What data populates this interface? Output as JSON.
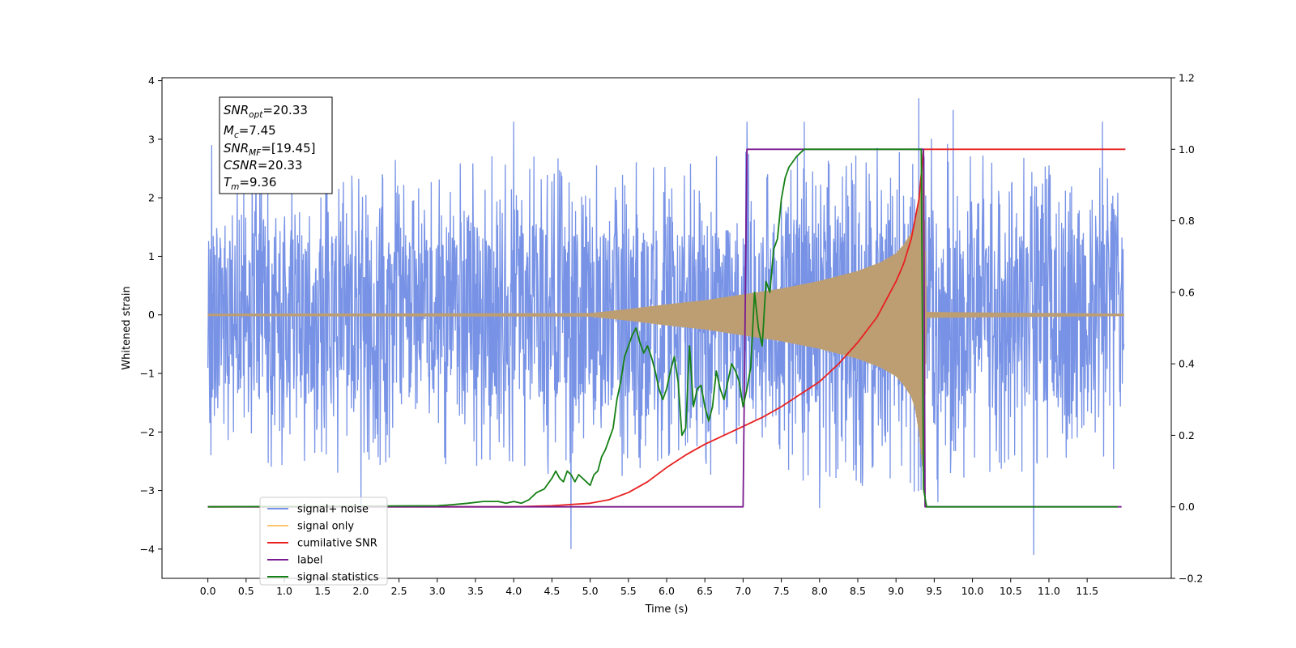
{
  "chart_data": {
    "type": "line",
    "xlabel": "Time (s)",
    "ylabel": "Whitened strain",
    "xlim": [
      -0.6,
      12.6
    ],
    "ylim": [
      -4.5,
      4.05
    ],
    "y2lim": [
      -0.2,
      1.2
    ],
    "x_ticks": [
      "0.0",
      "0.5",
      "1.0",
      "1.5",
      "2.0",
      "2.5",
      "3.0",
      "3.5",
      "4.0",
      "4.5",
      "5.0",
      "5.5",
      "6.0",
      "6.5",
      "7.0",
      "7.5",
      "8.0",
      "8.5",
      "9.0",
      "9.5",
      "10.0",
      "10.5",
      "11.0",
      "11.5"
    ],
    "x_tick_values": [
      0,
      0.5,
      1,
      1.5,
      2,
      2.5,
      3,
      3.5,
      4,
      4.5,
      5,
      5.5,
      6,
      6.5,
      7,
      7.5,
      8,
      8.5,
      9,
      9.5,
      10,
      10.5,
      11,
      11.5
    ],
    "y_ticks": [
      4,
      3,
      2,
      1,
      0,
      -1,
      -2,
      -3,
      -4
    ],
    "y2_ticks": [
      "1.2",
      "1.0",
      "0.8",
      "0.6",
      "0.4",
      "0.2",
      "0.0",
      "−0.2"
    ],
    "y2_tick_values": [
      1.2,
      1.0,
      0.8,
      0.6,
      0.4,
      0.2,
      0.0,
      -0.2
    ],
    "grid": false,
    "legend_position": "lower-left",
    "info_box": {
      "snr_opt": {
        "base": "SNR",
        "sub": "opt",
        "value": "=20.33"
      },
      "mc": {
        "base": "M",
        "sub": "c",
        "value": "=7.45"
      },
      "snr_mf": {
        "base": "SNR",
        "sub": "MF",
        "value": "=[19.45]"
      },
      "csnr": {
        "base": "CSNR",
        "sub": "",
        "value": "=20.33"
      },
      "tm": {
        "base": "T",
        "sub": "m",
        "value": "=9.36"
      }
    },
    "series": [
      {
        "name": "signal+ noise",
        "color": "#7893e6",
        "axis": "left",
        "noise_envelope_x": [
          0,
          1,
          2,
          3,
          4,
          5,
          6,
          7,
          8,
          9,
          9.3,
          9.36,
          10,
          11,
          12
        ],
        "noise_envelope_upper": [
          2.6,
          2.5,
          2.6,
          2.4,
          2.7,
          2.6,
          2.6,
          2.7,
          2.8,
          2.9,
          3.2,
          3.3,
          2.6,
          2.6,
          2.5
        ],
        "noise_envelope_lower": [
          -2.6,
          -2.5,
          -2.6,
          -2.5,
          -2.7,
          -2.7,
          -2.6,
          -2.6,
          -2.7,
          -2.8,
          -2.6,
          -2.7,
          -2.6,
          -2.6,
          -2.5
        ],
        "spikes_x": [
          0.05,
          2.0,
          4.0,
          4.75,
          7.05,
          7.8,
          8.0,
          9.3,
          9.55,
          9.75,
          10.8,
          11.7
        ],
        "spikes_y": [
          2.9,
          -3.4,
          3.3,
          -4.0,
          3.3,
          3.3,
          -3.3,
          3.7,
          -3.2,
          3.5,
          -4.1,
          3.3
        ]
      },
      {
        "name": "signal only",
        "color": "#bd9e73",
        "axis": "left",
        "envelope_x": [
          0,
          5.0,
          5.5,
          6.0,
          6.5,
          7.0,
          7.5,
          8.0,
          8.5,
          8.8,
          9.0,
          9.1,
          9.2,
          9.25,
          9.3,
          9.33,
          9.36,
          9.4,
          12.0
        ],
        "envelope_y": [
          0.02,
          0.03,
          0.1,
          0.18,
          0.25,
          0.35,
          0.45,
          0.58,
          0.75,
          0.9,
          1.05,
          1.2,
          1.4,
          1.6,
          2.0,
          2.4,
          2.8,
          0.05,
          0.02
        ]
      },
      {
        "name": "cumilative SNR",
        "color": "#e82020",
        "axis": "right",
        "x": [
          0,
          4.0,
          4.5,
          5.0,
          5.25,
          5.5,
          5.75,
          6.0,
          6.25,
          6.5,
          6.75,
          7.0,
          7.25,
          7.5,
          7.75,
          8.0,
          8.25,
          8.5,
          8.75,
          9.0,
          9.1,
          9.2,
          9.3,
          9.36,
          12.0
        ],
        "values": [
          0.0,
          0.0,
          0.003,
          0.01,
          0.02,
          0.04,
          0.07,
          0.11,
          0.145,
          0.175,
          0.2,
          0.225,
          0.25,
          0.28,
          0.315,
          0.35,
          0.4,
          0.46,
          0.53,
          0.63,
          0.68,
          0.75,
          0.86,
          1.0,
          1.0
        ]
      },
      {
        "name": "label",
        "color": "#7a1a8f",
        "axis": "right",
        "x": [
          0,
          7.0,
          7.05,
          9.36,
          9.38,
          11.95
        ],
        "values": [
          0,
          0,
          1,
          1,
          0,
          0
        ]
      },
      {
        "name": "signal statistics",
        "color": "#158015",
        "axis": "right",
        "x": [
          0,
          3.0,
          3.2,
          3.4,
          3.6,
          3.8,
          3.9,
          4.0,
          4.1,
          4.2,
          4.3,
          4.4,
          4.5,
          4.55,
          4.6,
          4.65,
          4.7,
          4.75,
          4.8,
          4.85,
          4.9,
          4.95,
          5.0,
          5.05,
          5.1,
          5.15,
          5.2,
          5.25,
          5.3,
          5.35,
          5.4,
          5.45,
          5.5,
          5.55,
          5.6,
          5.65,
          5.7,
          5.75,
          5.8,
          5.85,
          5.9,
          5.95,
          6.0,
          6.05,
          6.1,
          6.15,
          6.2,
          6.25,
          6.3,
          6.35,
          6.4,
          6.45,
          6.5,
          6.55,
          6.6,
          6.65,
          6.7,
          6.75,
          6.8,
          6.85,
          6.9,
          6.95,
          7.0,
          7.05,
          7.1,
          7.15,
          7.2,
          7.25,
          7.3,
          7.35,
          7.4,
          7.45,
          7.5,
          7.55,
          7.6,
          7.7,
          7.8,
          7.9,
          8.0,
          8.5,
          9.0,
          9.33,
          9.36,
          9.4,
          9.5,
          11.9
        ],
        "values": [
          0,
          0.003,
          0.006,
          0.01,
          0.015,
          0.015,
          0.01,
          0.015,
          0.01,
          0.02,
          0.04,
          0.05,
          0.08,
          0.1,
          0.08,
          0.07,
          0.1,
          0.09,
          0.07,
          0.09,
          0.08,
          0.07,
          0.06,
          0.09,
          0.1,
          0.14,
          0.16,
          0.19,
          0.22,
          0.3,
          0.35,
          0.42,
          0.45,
          0.48,
          0.5,
          0.46,
          0.43,
          0.45,
          0.42,
          0.38,
          0.33,
          0.3,
          0.33,
          0.38,
          0.42,
          0.35,
          0.2,
          0.22,
          0.45,
          0.28,
          0.33,
          0.34,
          0.28,
          0.24,
          0.28,
          0.38,
          0.33,
          0.3,
          0.35,
          0.4,
          0.38,
          0.35,
          0.28,
          0.33,
          0.39,
          0.6,
          0.5,
          0.45,
          0.63,
          0.6,
          0.72,
          0.75,
          0.86,
          0.92,
          0.95,
          0.98,
          1.0,
          1.0,
          1.0,
          1.0,
          1.0,
          1.0,
          0.05,
          0.0,
          0.0,
          0.0
        ]
      }
    ]
  }
}
